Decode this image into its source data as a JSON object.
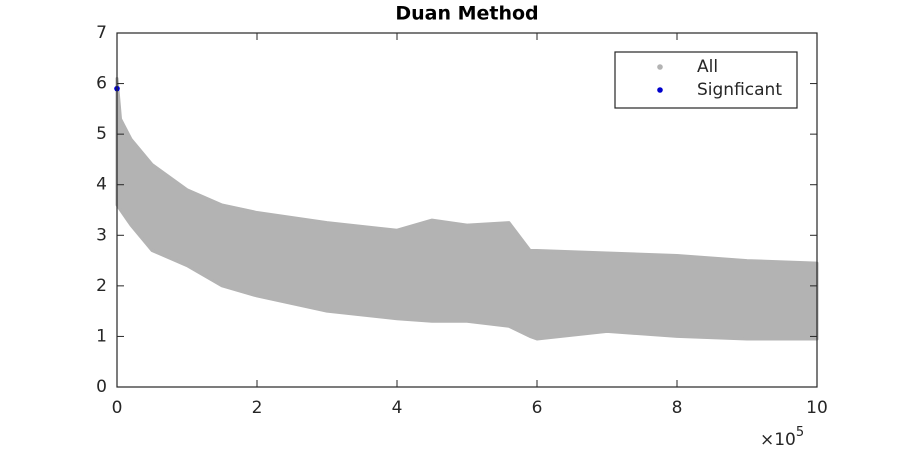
{
  "chart_data": {
    "type": "scatter",
    "title": "Duan Method",
    "xlim": [
      0,
      10
    ],
    "xticks": [
      0,
      2,
      4,
      6,
      8,
      10
    ],
    "x_scale_label": "×10",
    "x_scale_exponent": "5",
    "ylim": [
      0,
      7
    ],
    "yticks": [
      0,
      1,
      2,
      3,
      4,
      5,
      6,
      7
    ],
    "legend": "northeast",
    "series": [
      {
        "name": "All",
        "color": "#b3b3b3",
        "x": [
          0,
          0.05,
          0.2,
          0.5,
          1,
          1.5,
          2,
          3,
          4,
          4.5,
          5,
          5.6,
          5.9,
          6,
          7,
          8,
          9,
          10
        ],
        "upper": [
          6.1,
          5.3,
          4.9,
          4.4,
          3.9,
          3.6,
          3.45,
          3.25,
          3.1,
          3.3,
          3.2,
          3.25,
          2.7,
          2.7,
          2.65,
          2.6,
          2.5,
          2.45
        ],
        "lower": [
          3.6,
          3.5,
          3.2,
          2.7,
          2.4,
          2.0,
          1.8,
          1.5,
          1.35,
          1.3,
          1.3,
          1.2,
          1.0,
          0.95,
          1.1,
          1.0,
          0.95,
          0.95
        ]
      },
      {
        "name": "Signficant",
        "color": "#0000cc",
        "x": [
          0
        ],
        "values": [
          5.9
        ]
      }
    ]
  }
}
